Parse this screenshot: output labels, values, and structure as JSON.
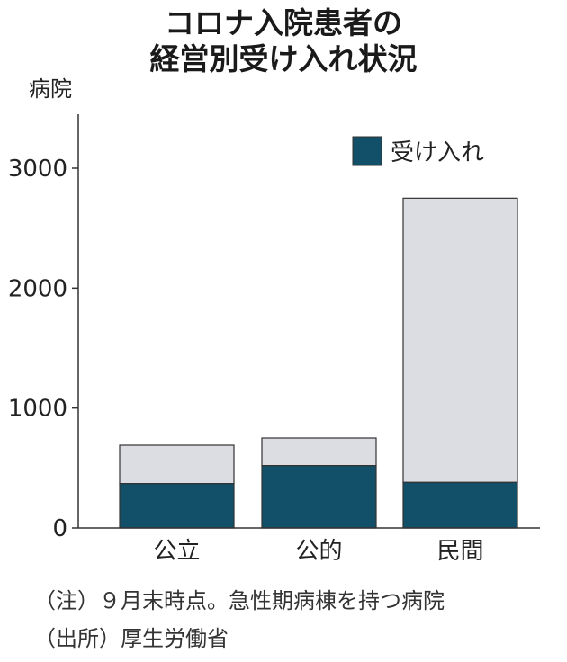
{
  "title_lines": [
    "コロナ入院患者の",
    "経営別受け入れ状況"
  ],
  "notes": [
    "（注）９月末時点。急性期病棟を持つ病院",
    "（出所）厚生労働省"
  ],
  "colors": {
    "accepted": "#12506a",
    "total": "#dcdde3",
    "axis": "#333333",
    "text": "#222222"
  },
  "chart_data": {
    "type": "bar",
    "stacked": true,
    "ylabel": "病院",
    "ylim": [
      0,
      3450
    ],
    "yticks": [
      0,
      1000,
      2000,
      3000
    ],
    "ytick_labels": [
      "0",
      "1000",
      "2000",
      "3000"
    ],
    "categories": [
      "公立",
      "公的",
      "民間"
    ],
    "series": [
      {
        "name": "受け入れ",
        "values": [
          370,
          520,
          380
        ]
      },
      {
        "values": [
          320,
          230,
          2370
        ]
      }
    ],
    "totals": [
      690,
      750,
      2750
    ],
    "legend_position": "top-right",
    "grid": false
  }
}
